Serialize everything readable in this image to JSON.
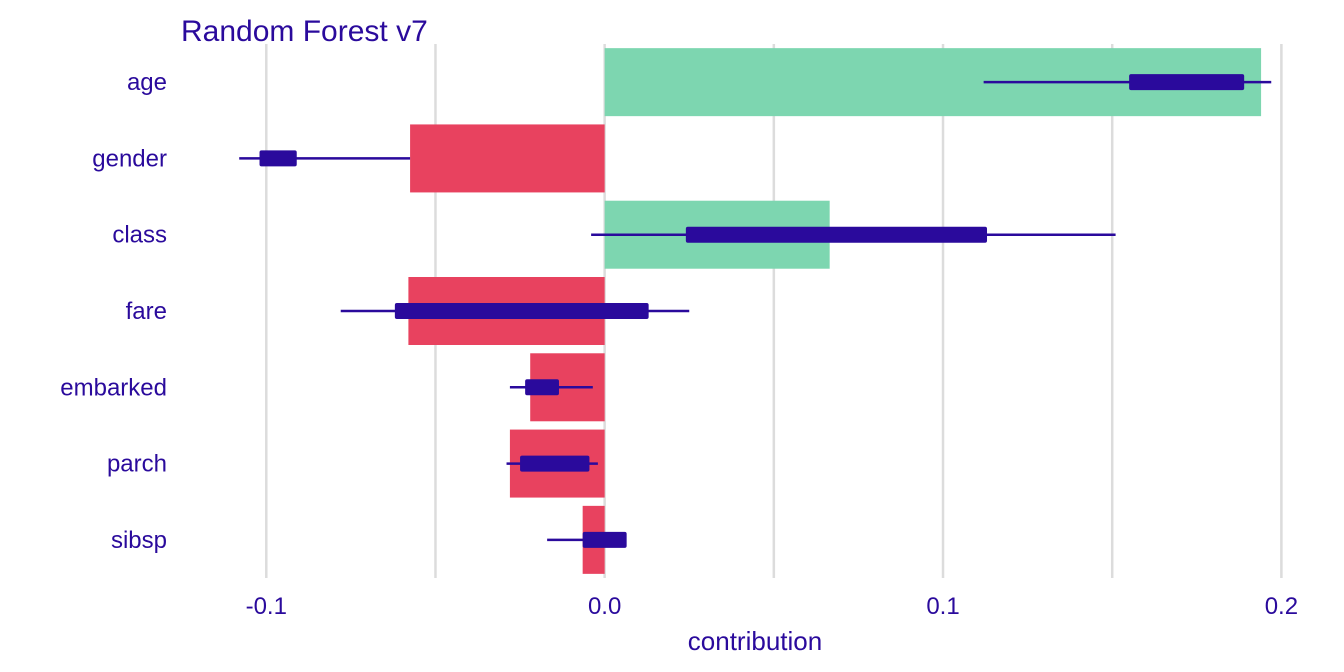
{
  "chart_data": {
    "type": "bar",
    "title": "Random Forest v7",
    "xlabel": "contribution",
    "ylabel": "",
    "xlim": [
      -0.1255,
      0.2055
    ],
    "x_ticks": [
      -0.1,
      0.0,
      0.1,
      0.2
    ],
    "x_tick_labels": [
      "-0.1",
      "0.0",
      "0.1",
      "0.2"
    ],
    "minor_gridlines": [
      -0.05,
      0.05,
      0.15
    ],
    "grid": true,
    "legend": "none",
    "orientation": "horizontal",
    "categories": [
      "age",
      "gender",
      "class",
      "fare",
      "embarked",
      "parch",
      "sibsp"
    ],
    "values": [
      0.194,
      -0.0575,
      0.0665,
      -0.058,
      -0.022,
      -0.028,
      -0.0065
    ],
    "intervals": [
      {
        "whisker": [
          0.112,
          0.197
        ],
        "box": [
          0.155,
          0.189
        ]
      },
      {
        "whisker": [
          -0.108,
          -0.0575
        ],
        "box": [
          -0.102,
          -0.091
        ]
      },
      {
        "whisker": [
          -0.004,
          0.151
        ],
        "box": [
          0.024,
          0.113
        ]
      },
      {
        "whisker": [
          -0.078,
          0.025
        ],
        "box": [
          -0.062,
          0.013
        ]
      },
      {
        "whisker": [
          -0.028,
          -0.0035
        ],
        "box": [
          -0.0235,
          -0.0135
        ]
      },
      {
        "whisker": [
          -0.029,
          -0.002
        ],
        "box": [
          -0.025,
          -0.0045
        ]
      },
      {
        "whisker": [
          -0.017,
          0.0025
        ],
        "box": [
          -0.0065,
          0.0065
        ]
      }
    ],
    "colors": {
      "positive": "#7dd6b0",
      "negative": "#e8425f",
      "interval": "#2a0a9c",
      "text": "#2a0a9c",
      "grid": "#dcdcdc"
    }
  }
}
